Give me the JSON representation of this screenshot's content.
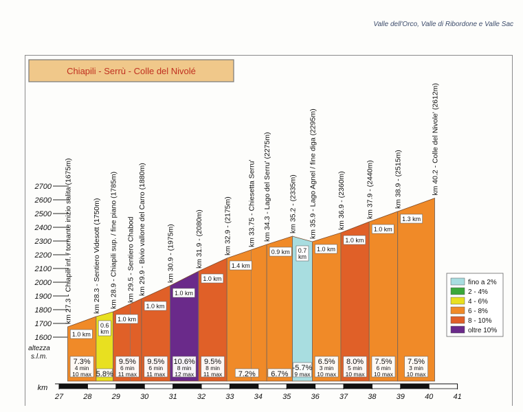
{
  "header": {
    "text": "Valle dell'Orco, Valle di Ribordone e Valle Sac"
  },
  "title_box": {
    "text": "Chiapili - Serrù - Colle del Nivolé"
  },
  "colors": {
    "fino2": "#a8dde0",
    "p2_4": "#3aa83a",
    "p4_6": "#e8e020",
    "p6_8": "#f08a28",
    "p8_10": "#e06028",
    "oltre10": "#6a2a8a"
  },
  "chart_data": {
    "type": "area",
    "title": "Chiapili - Serrù - Colle del Nivolé",
    "ylabel": "altezza s.l.m.",
    "xlabel": "km",
    "ylim": [
      1600,
      2700
    ],
    "yticks": [
      1600,
      1700,
      1800,
      1900,
      2000,
      2100,
      2200,
      2300,
      2400,
      2500,
      2600,
      2700
    ],
    "xlim": [
      27,
      41
    ],
    "xticks": [
      27,
      28,
      29,
      30,
      31,
      32,
      33,
      34,
      35,
      36,
      37,
      38,
      39,
      40,
      41
    ],
    "profile": [
      {
        "km": 27.3,
        "alt": 1675
      },
      {
        "km": 28.3,
        "alt": 1750
      },
      {
        "km": 28.9,
        "alt": 1785
      },
      {
        "km": 29.5,
        "alt": 1830
      },
      {
        "km": 29.9,
        "alt": 1880
      },
      {
        "km": 30.9,
        "alt": 1975
      },
      {
        "km": 31.9,
        "alt": 2080
      },
      {
        "km": 32.9,
        "alt": 2175
      },
      {
        "km": 33.75,
        "alt": 2235
      },
      {
        "km": 34.3,
        "alt": 2275
      },
      {
        "km": 35.2,
        "alt": 2335
      },
      {
        "km": 35.9,
        "alt": 2295
      },
      {
        "km": 36.9,
        "alt": 2360
      },
      {
        "km": 37.9,
        "alt": 2440
      },
      {
        "km": 38.9,
        "alt": 2515
      },
      {
        "km": 40.2,
        "alt": 2612
      }
    ],
    "waypoints": [
      {
        "km": 27.3,
        "label": "km 27.3 - Chiapili inf. / tornante inizio salita (1675m)"
      },
      {
        "km": 28.3,
        "label": "km 28.3 - Sentiero Videsott (1750m)"
      },
      {
        "km": 28.9,
        "label": "km 28.9 - Chiapili sup. / fine piano (1785m)"
      },
      {
        "km": 29.5,
        "label": "km 29.5 - Sentiero Chabod"
      },
      {
        "km": 29.9,
        "label": "km 29.9 - Bivio vallone del Carro (1880m)"
      },
      {
        "km": 30.9,
        "label": "km 30.9 - (1975m)"
      },
      {
        "km": 31.9,
        "label": "km 31.9 - (2080m)"
      },
      {
        "km": 32.9,
        "label": "km 32.9 - (2175m)"
      },
      {
        "km": 33.75,
        "label": "km 33.75 - Chiesetta Serru'"
      },
      {
        "km": 34.3,
        "label": "km 34.3 - Lago del Serru' (2275m)"
      },
      {
        "km": 35.2,
        "label": "km 35.2 - (2335m)"
      },
      {
        "km": 35.9,
        "label": "km 35.9 - Lago Agnel / fine diga (2295m)"
      },
      {
        "km": 36.9,
        "label": "km 36.9 - (2360m)"
      },
      {
        "km": 37.9,
        "label": "km 37.9 - (2440m)"
      },
      {
        "km": 38.9,
        "label": "km 38.9 - (2515m)"
      },
      {
        "km": 40.2,
        "label": "km 40.2 - Colle del Nivole' (2612m)"
      }
    ],
    "segments": [
      {
        "from": 27.3,
        "to": 28.3,
        "cls": "p6_8",
        "len": "1.0 km",
        "grade": "7.3%",
        "times": [
          "4 min",
          "10 max"
        ]
      },
      {
        "from": 28.3,
        "to": 28.9,
        "cls": "p4_6",
        "len": "0.6 km",
        "grade": "5.8%",
        "times": []
      },
      {
        "from": 28.9,
        "to": 29.9,
        "cls": "p8_10",
        "len": "1.0 km",
        "grade": "9.5%",
        "times": [
          "6 min",
          "11 max"
        ]
      },
      {
        "from": 29.9,
        "to": 30.9,
        "cls": "p8_10",
        "len": "1.0 km",
        "grade": "9.5%",
        "times": [
          "6 min",
          "11 max"
        ]
      },
      {
        "from": 30.9,
        "to": 31.9,
        "cls": "oltre10",
        "len": "1.0 km",
        "grade": "10.6%",
        "times": [
          "8 min",
          "12 max"
        ]
      },
      {
        "from": 31.9,
        "to": 32.9,
        "cls": "p8_10",
        "len": "1.0 km",
        "grade": "9.5%",
        "times": [
          "8 min",
          "11 max"
        ]
      },
      {
        "from": 32.9,
        "to": 34.3,
        "cls": "p6_8",
        "len": "1.4 km",
        "grade": "7.2%",
        "times": []
      },
      {
        "from": 34.3,
        "to": 35.2,
        "cls": "p6_8",
        "len": "0.9 km",
        "grade": "6.7%",
        "times": []
      },
      {
        "from": 35.2,
        "to": 35.9,
        "cls": "fino2",
        "len": "0.7 km",
        "grade": "-5.7%",
        "times": [
          "9 max"
        ]
      },
      {
        "from": 35.9,
        "to": 36.9,
        "cls": "p6_8",
        "len": "1.0 km",
        "grade": "6.5%",
        "times": [
          "3 min",
          "10 max"
        ]
      },
      {
        "from": 36.9,
        "to": 37.9,
        "cls": "p8_10",
        "len": "1.0 km",
        "grade": "8.0%",
        "times": [
          "5 min",
          "10 max"
        ]
      },
      {
        "from": 37.9,
        "to": 38.9,
        "cls": "p6_8",
        "len": "1.0 km",
        "grade": "7.5%",
        "times": [
          "6 min",
          "10 max"
        ]
      },
      {
        "from": 38.9,
        "to": 40.2,
        "cls": "p6_8",
        "len": "1.3 km",
        "grade": "7.5%",
        "times": [
          "3 min",
          "10 max"
        ]
      }
    ],
    "legend": [
      {
        "cls": "fino2",
        "label": "fino a 2%"
      },
      {
        "cls": "p2_4",
        "label": "2 - 4%"
      },
      {
        "cls": "p4_6",
        "label": "4 - 6%"
      },
      {
        "cls": "p6_8",
        "label": "6 - 8%"
      },
      {
        "cls": "p8_10",
        "label": "8 - 10%"
      },
      {
        "cls": "oltre10",
        "label": "oltre 10%"
      }
    ],
    "legend_position": "right"
  }
}
